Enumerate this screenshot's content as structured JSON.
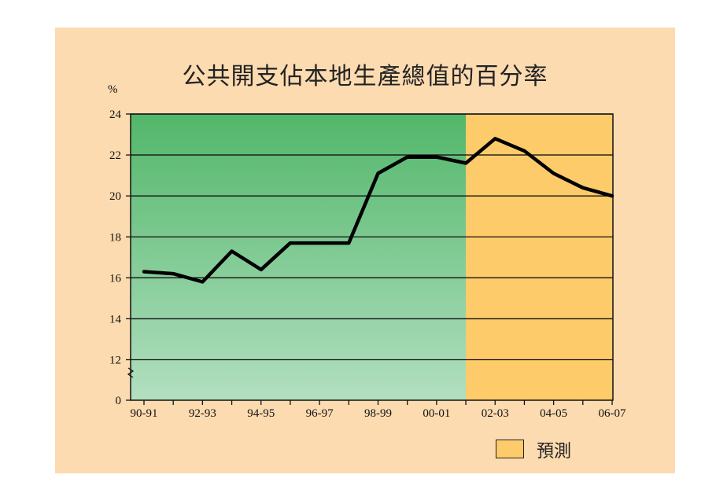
{
  "chart_data": {
    "type": "line",
    "title": "公共開支佔本地生產總值的百分率",
    "ylabel": "%",
    "xlabel": "",
    "ylim": [
      0,
      24
    ],
    "y_ticks": [
      "0",
      "12",
      "14",
      "16",
      "18",
      "20",
      "22",
      "24"
    ],
    "axis_break": "between 0 and 12",
    "categories": [
      "90-91",
      "91-92",
      "92-93",
      "93-94",
      "94-95",
      "95-96",
      "96-97",
      "97-98",
      "98-99",
      "99-00",
      "00-01",
      "01-02",
      "02-03",
      "03-04",
      "04-05",
      "05-06",
      "06-07"
    ],
    "x_tick_labels": [
      "90-91",
      "92-93",
      "94-95",
      "96-97",
      "98-99",
      "00-01",
      "02-03",
      "04-05",
      "06-07"
    ],
    "series": [
      {
        "values": [
          16.3,
          16.2,
          15.8,
          17.3,
          16.4,
          17.7,
          17.7,
          17.7,
          21.1,
          21.9,
          21.9,
          21.6,
          22.8,
          22.2,
          21.1,
          20.4,
          20.0
        ]
      }
    ],
    "forecast_start_category": "01-02",
    "grid": true,
    "legend": {
      "placement": "bottom-right",
      "items": [
        {
          "label": "預測",
          "color": "#fecb6a"
        }
      ]
    }
  },
  "colors": {
    "panel_bg": "#fddbb0",
    "actual_gradient_top": "#52b76a",
    "actual_gradient_bottom": "#b2dfc0",
    "forecast_bg": "#fecb6a",
    "line": "#000000"
  }
}
